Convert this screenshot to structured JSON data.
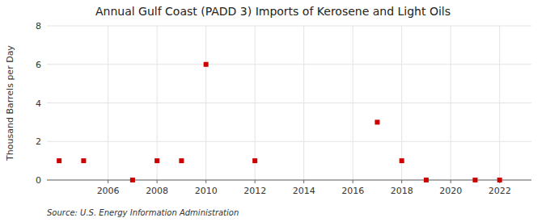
{
  "chart_data": {
    "type": "scatter",
    "title": "Annual Gulf Coast (PADD 3) Imports of Kerosene and Light Oils",
    "y_label": "Thousand Barrels per Day",
    "source": "Source: U.S. Energy Information Administration",
    "x": [
      2004,
      2005,
      2007,
      2008,
      2009,
      2010,
      2012,
      2017,
      2018,
      2019,
      2021,
      2022
    ],
    "values": [
      1,
      1,
      0,
      1,
      1,
      6,
      1,
      3,
      1,
      0,
      0,
      0
    ],
    "color": "#cc0000",
    "marker": "square",
    "xlim": [
      2003.5,
      2023.3
    ],
    "ylim": [
      0,
      8
    ],
    "xticks": [
      2006,
      2008,
      2010,
      2012,
      2014,
      2016,
      2018,
      2020,
      2022
    ],
    "yticks": [
      0,
      2,
      4,
      6,
      8
    ],
    "grid": true
  }
}
